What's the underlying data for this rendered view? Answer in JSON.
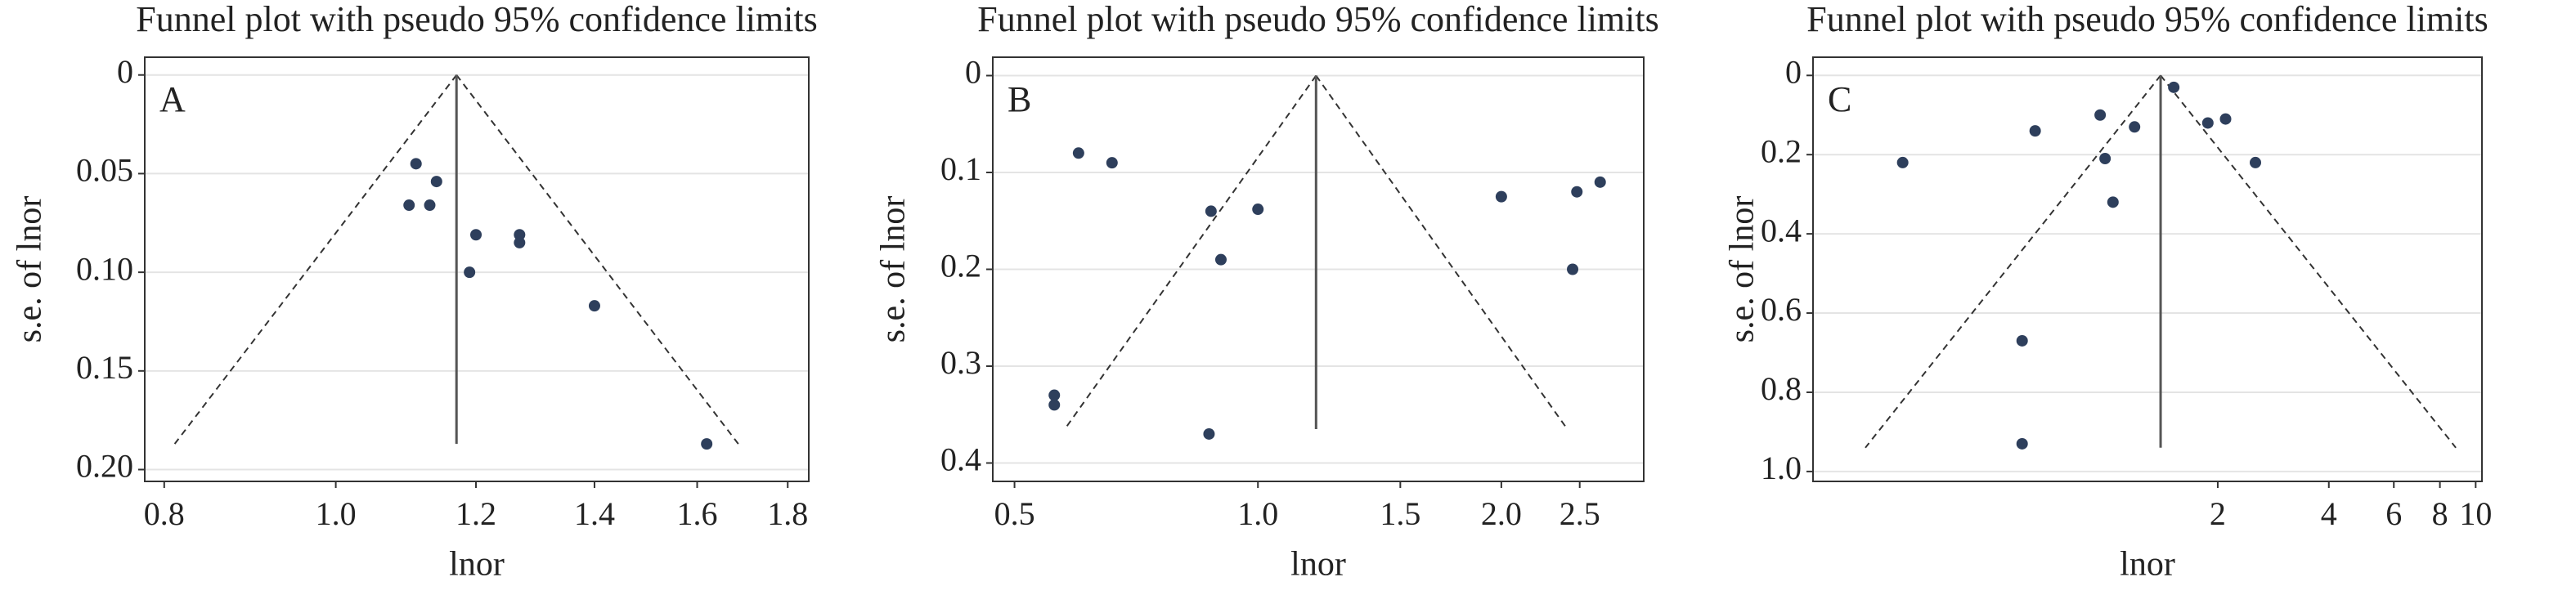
{
  "chart_data": [
    {
      "type": "funnel",
      "title": "Funnel plot with pseudo 95% confidence limits",
      "panel_label": "A",
      "x_label": "lnor",
      "y_label": "s.e. of lnor",
      "x_log": true,
      "y_inverted": true,
      "grid": true,
      "color": "#2e3f5c",
      "x": [
        1.11,
        1.14,
        1.1,
        1.13,
        1.2,
        1.19,
        1.27,
        1.27,
        1.4,
        1.62
      ],
      "y": [
        0.045,
        0.054,
        0.066,
        0.066,
        0.081,
        0.1,
        0.081,
        0.085,
        0.117,
        0.187
      ],
      "funnel": {
        "center": 1.17,
        "se_max": 0.187
      },
      "xlim": [
        0.78,
        1.85
      ],
      "ylim": [
        -0.009,
        0.206
      ],
      "xticks": [
        0.8,
        {
          "value": 1,
          "label": "1.0"
        },
        1.2,
        1.4,
        1.6,
        1.8
      ],
      "yticks": [
        0,
        0.05,
        {
          "value": 0.1,
          "label": "0.10"
        },
        0.15,
        {
          "value": 0.2,
          "label": "0.20"
        }
      ]
    },
    {
      "type": "funnel",
      "title": "Funnel plot with pseudo 95% confidence limits",
      "panel_label": "B",
      "x_label": "lnor",
      "y_label": "s.e. of lnor",
      "x_log": true,
      "y_inverted": true,
      "grid": true,
      "color": "#2e3f5c",
      "x": [
        0.6,
        0.66,
        0.875,
        1.0,
        0.9,
        0.56,
        0.56,
        0.87,
        2.0,
        2.48,
        2.65,
        2.45
      ],
      "y": [
        0.08,
        0.09,
        0.14,
        0.138,
        0.19,
        0.33,
        0.34,
        0.37,
        0.125,
        0.12,
        0.11,
        0.2
      ],
      "funnel": {
        "center": 1.18,
        "se_max": 0.365
      },
      "xlim": [
        0.47,
        3.0
      ],
      "ylim": [
        -0.019,
        0.419
      ],
      "xticks": [
        0.5,
        {
          "value": 1,
          "label": "1.0"
        },
        1.5,
        {
          "value": 2,
          "label": "2.0"
        },
        2.5
      ],
      "yticks": [
        0,
        0.1,
        0.2,
        0.3,
        0.4
      ]
    },
    {
      "type": "funnel",
      "title": "Funnel plot with pseudo 95% confidence limits",
      "panel_label": "C",
      "x_label": "lnor",
      "y_label": "s.e. of lnor",
      "x_log": true,
      "y_inverted": true,
      "grid": true,
      "color": "#2e3f5c",
      "x": [
        0.28,
        0.64,
        0.96,
        0.99,
        1.19,
        1.04,
        1.52,
        1.88,
        2.1,
        2.53,
        0.59,
        0.59
      ],
      "y": [
        0.22,
        0.14,
        0.1,
        0.21,
        0.13,
        0.32,
        0.03,
        0.12,
        0.11,
        0.22,
        0.67,
        0.93
      ],
      "funnel": {
        "center": 1.4,
        "se_max": 0.94
      },
      "xlim": [
        0.16,
        10.4
      ],
      "ylim": [
        -0.046,
        1.025
      ],
      "xticks": [
        2,
        4,
        6,
        8,
        10
      ],
      "yticks": [
        0,
        0.2,
        0.4,
        0.6,
        0.8,
        {
          "value": 1,
          "label": "1.0"
        }
      ]
    }
  ]
}
